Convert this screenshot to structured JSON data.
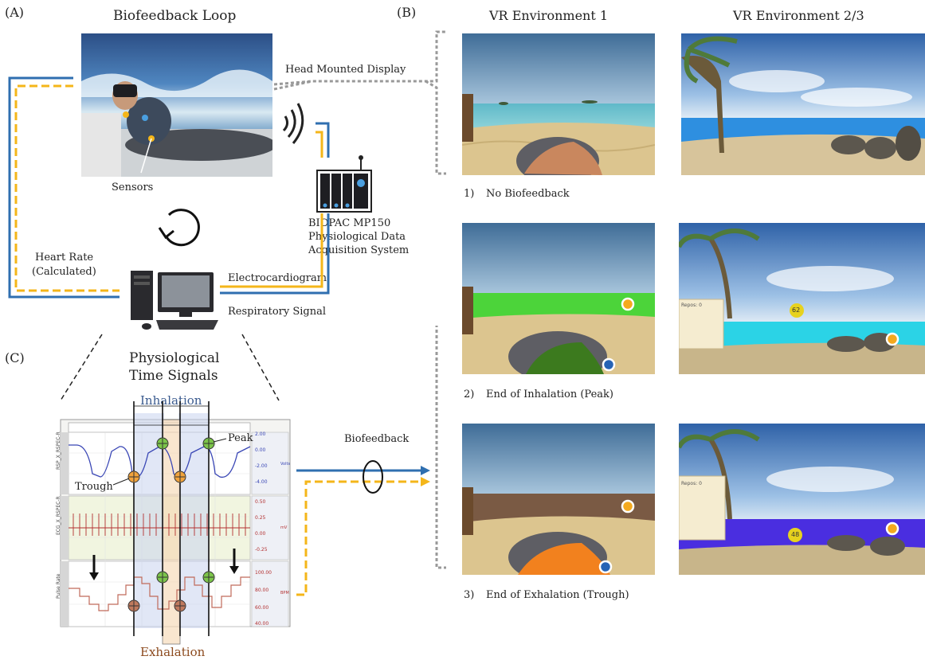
{
  "panel_a": {
    "letter": "(A)",
    "title": "Biofeedback Loop",
    "sensors_label": "Sensors",
    "hmd_label": "Head Mounted Display",
    "biopac_line1": "BIOPAC MP150",
    "biopac_line2": "Physiological Data",
    "biopac_line3": "Acquisition System",
    "heart_rate_line1": "Heart Rate",
    "heart_rate_line2": "(Calculated)",
    "ecg_label": "Electrocardiogram",
    "resp_label": "Respiratory Signal"
  },
  "panel_b": {
    "letter": "(B)",
    "col1_title": "VR Environment 1",
    "col2_title": "VR Environment 2/3",
    "rows": [
      {
        "num": "1)",
        "caption": "No Biofeedback"
      },
      {
        "num": "2)",
        "caption": "End of Inhalation (Peak)"
      },
      {
        "num": "3)",
        "caption": "End of Exhalation (Trough)"
      }
    ],
    "env2_row2_score": "62",
    "env2_row3_score": "48",
    "env2_panel_title": "Repos: 0"
  },
  "panel_c": {
    "letter": "(C)",
    "title_line1": "Physiological",
    "title_line2": "Time Signals",
    "inhalation_label": "Inhalation",
    "exhalation_label": "Exhalation",
    "peak_label": "Peak",
    "trough_label": "Trough",
    "biofeedback_label": "Biofeedback",
    "channel1_name": "RSP_X_RSPEC-R",
    "channel2_name": "ECG_X_RSPEC-R",
    "channel3_name": "Pulse Rate",
    "ch1_ticks": [
      "2.00",
      "0.00",
      "-2.00",
      "-4.00"
    ],
    "ch1_unit": "Volts",
    "ch2_ticks": [
      "0.50",
      "0.25",
      "0.00",
      "-0.25"
    ],
    "ch2_unit": "mV",
    "ch3_ticks": [
      "100.00",
      "80.00",
      "60.00",
      "40.00"
    ],
    "ch3_unit": "BPM"
  },
  "colors": {
    "blue_line": "#2f6fb0",
    "yellow_line": "#f4b61a",
    "peak_green": "#7cc54a",
    "trough_orange": "#f1a33c",
    "inhale_band": "#c9d4ee",
    "exhale_band": "#f6d6b0"
  }
}
